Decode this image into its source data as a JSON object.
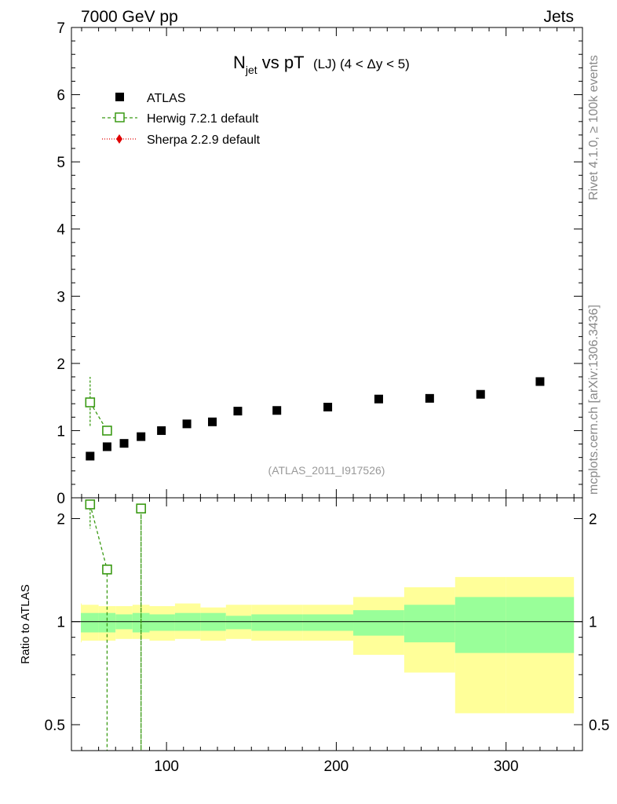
{
  "header": {
    "left": "7000 GeV pp",
    "right": "Jets"
  },
  "side_labels": {
    "rivet": "Rivet 4.1.0, ≥ 100k events",
    "mcplots": "mcplots.cern.ch [arXiv:1306.3436]"
  },
  "colors": {
    "atlas": "#000000",
    "herwig": "#3a9a14",
    "sherpa": "#e00000",
    "band_inner": "#99ff99",
    "band_outer": "#ffff99"
  },
  "chart_data": [
    {
      "type": "scatter",
      "panel": "main",
      "title_main": "N",
      "title_sub": "jet",
      "title_rest": " vs pT",
      "title_suffix": "(LJ) (4 < Δy < 5)",
      "watermark": "(ATLAS_2011_I917526)",
      "xlim": [
        44,
        345
      ],
      "ylim": [
        0,
        7
      ],
      "yticks": [
        "0",
        "1",
        "2",
        "3",
        "4",
        "5",
        "6",
        "7"
      ],
      "legend": [
        "ATLAS",
        "Herwig 7.2.1 default",
        "Sherpa 2.2.9 default"
      ],
      "series": [
        {
          "name": "ATLAS",
          "style": "square-filled",
          "x": [
            55,
            65,
            75,
            85,
            97,
            112,
            127,
            142,
            165,
            195,
            225,
            255,
            285,
            320
          ],
          "y": [
            0.62,
            0.76,
            0.81,
            0.91,
            1.0,
            1.1,
            1.13,
            1.29,
            1.3,
            1.35,
            1.47,
            1.48,
            1.54,
            1.73
          ]
        },
        {
          "name": "Herwig 7.2.1 default",
          "style": "square-open-dashed",
          "x": [
            55,
            65
          ],
          "y": [
            1.42,
            1.0
          ],
          "yerr_lo": [
            0.35,
            0.0
          ],
          "yerr_hi": [
            0.38,
            0.0
          ]
        },
        {
          "name": "Sherpa 2.2.9 default",
          "style": "diamond-dotted",
          "x": [],
          "y": []
        }
      ]
    },
    {
      "type": "line",
      "panel": "ratio",
      "ylabel": "Ratio to ATLAS",
      "ylim": [
        0.42,
        2.3
      ],
      "yticks": [
        "0.5",
        "1",
        "2"
      ],
      "xticks": [
        "100",
        "200",
        "300"
      ],
      "band_edges": [
        44,
        50,
        60,
        70,
        80,
        90,
        105,
        120,
        135,
        150,
        180,
        210,
        240,
        270,
        300,
        340
      ],
      "inner_lo": [
        0.93,
        0.93,
        0.93,
        0.95,
        0.93,
        0.94,
        0.94,
        0.94,
        0.95,
        0.94,
        0.94,
        0.91,
        0.87,
        0.81,
        0.81
      ],
      "inner_hi": [
        1.06,
        1.06,
        1.06,
        1.05,
        1.06,
        1.05,
        1.06,
        1.06,
        1.04,
        1.05,
        1.05,
        1.08,
        1.12,
        1.18,
        1.18
      ],
      "outer_lo": [
        0.87,
        0.88,
        0.88,
        0.89,
        0.89,
        0.88,
        0.89,
        0.88,
        0.89,
        0.88,
        0.88,
        0.8,
        0.71,
        0.54,
        0.54
      ],
      "outer_hi": [
        1.13,
        1.12,
        1.11,
        1.11,
        1.12,
        1.11,
        1.13,
        1.1,
        1.12,
        1.12,
        1.12,
        1.18,
        1.26,
        1.35,
        1.35
      ],
      "herwig": {
        "x": [
          55,
          65,
          85
        ],
        "y": [
          2.2,
          1.42,
          2.14
        ],
        "yerr_lo": [
          0.33,
          0,
          0
        ],
        "yerr_hi": [
          0,
          0,
          0
        ]
      },
      "herwig_offscale": [
        [
          65,
          75
        ],
        [
          85,
          79
        ],
        [
          85,
          95
        ]
      ]
    }
  ]
}
